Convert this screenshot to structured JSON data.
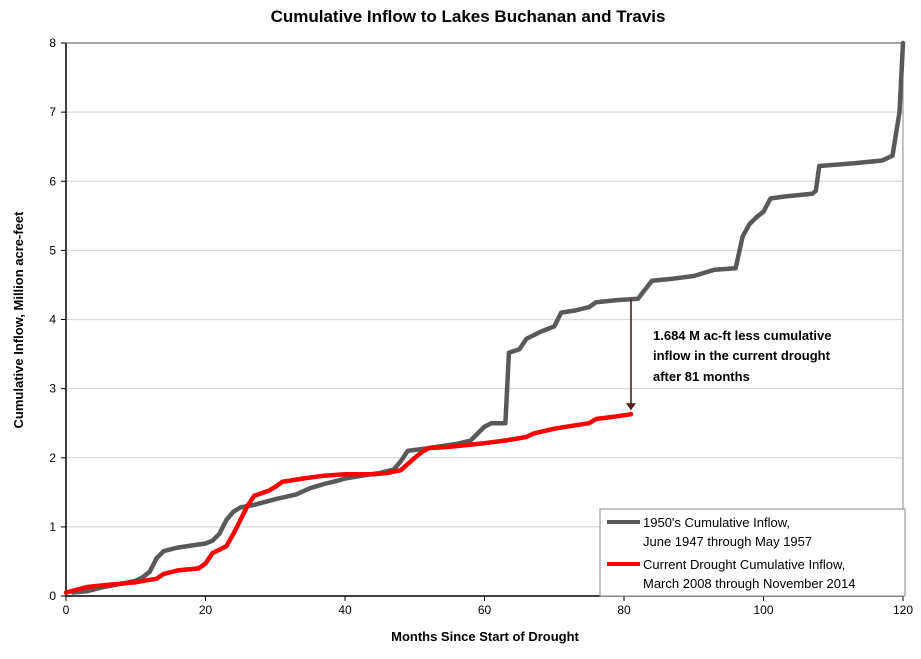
{
  "chart_data": {
    "type": "line",
    "title": "Cumulative Inflow to Lakes Buchanan and Travis",
    "xlabel": "Months Since Start of Drought",
    "ylabel": "Cumulative Inflow, Million acre-feet",
    "xlim": [
      0,
      120
    ],
    "ylim": [
      0,
      8
    ],
    "xticks": [
      "0",
      "20",
      "40",
      "60",
      "80",
      "100",
      "120"
    ],
    "yticks": [
      "0",
      "1",
      "2",
      "3",
      "4",
      "5",
      "6",
      "7",
      "8"
    ],
    "grid": "horizontal",
    "legend_position": "bottom-right",
    "series": [
      {
        "name": "1950's Cumulative Inflow,",
        "name_line2": "June 1947 through May 1957",
        "color": "#595959",
        "points": [
          [
            1,
            0.05
          ],
          [
            3,
            0.07
          ],
          [
            5,
            0.12
          ],
          [
            8,
            0.18
          ],
          [
            10,
            0.22
          ],
          [
            11,
            0.27
          ],
          [
            12,
            0.35
          ],
          [
            13,
            0.55
          ],
          [
            14,
            0.65
          ],
          [
            16,
            0.7
          ],
          [
            18,
            0.73
          ],
          [
            20,
            0.76
          ],
          [
            21,
            0.8
          ],
          [
            22,
            0.9
          ],
          [
            23,
            1.1
          ],
          [
            24,
            1.22
          ],
          [
            25,
            1.28
          ],
          [
            27,
            1.32
          ],
          [
            30,
            1.4
          ],
          [
            33,
            1.47
          ],
          [
            35,
            1.56
          ],
          [
            37,
            1.62
          ],
          [
            39,
            1.67
          ],
          [
            40,
            1.7
          ],
          [
            43,
            1.75
          ],
          [
            45,
            1.78
          ],
          [
            47,
            1.83
          ],
          [
            48,
            1.95
          ],
          [
            49,
            2.1
          ],
          [
            52,
            2.14
          ],
          [
            56,
            2.2
          ],
          [
            58,
            2.25
          ],
          [
            59,
            2.35
          ],
          [
            60,
            2.45
          ],
          [
            61,
            2.5
          ],
          [
            63,
            2.5
          ],
          [
            63.5,
            3.52
          ],
          [
            65,
            3.57
          ],
          [
            66,
            3.72
          ],
          [
            68,
            3.82
          ],
          [
            70,
            3.9
          ],
          [
            71,
            4.1
          ],
          [
            73,
            4.13
          ],
          [
            75,
            4.18
          ],
          [
            76,
            4.25
          ],
          [
            79,
            4.28
          ],
          [
            82,
            4.3
          ],
          [
            84,
            4.56
          ],
          [
            87,
            4.59
          ],
          [
            90,
            4.63
          ],
          [
            93,
            4.72
          ],
          [
            96,
            4.74
          ],
          [
            97,
            5.2
          ],
          [
            98,
            5.38
          ],
          [
            99,
            5.48
          ],
          [
            100,
            5.56
          ],
          [
            101,
            5.75
          ],
          [
            103,
            5.78
          ],
          [
            107,
            5.82
          ],
          [
            107.5,
            5.86
          ],
          [
            108,
            6.22
          ],
          [
            113,
            6.26
          ],
          [
            117,
            6.3
          ],
          [
            118.5,
            6.37
          ],
          [
            119.5,
            7.0
          ],
          [
            120,
            8.0
          ]
        ]
      },
      {
        "name": "Current Drought Cumulative Inflow,",
        "name_line2": "March 2008 through November 2014",
        "color": "#ff0000",
        "points": [
          [
            0,
            0.05
          ],
          [
            3,
            0.13
          ],
          [
            6,
            0.16
          ],
          [
            10,
            0.2
          ],
          [
            13,
            0.25
          ],
          [
            14,
            0.32
          ],
          [
            16,
            0.37
          ],
          [
            19,
            0.4
          ],
          [
            20,
            0.47
          ],
          [
            21,
            0.62
          ],
          [
            23,
            0.72
          ],
          [
            24,
            0.9
          ],
          [
            25,
            1.1
          ],
          [
            26,
            1.3
          ],
          [
            27,
            1.45
          ],
          [
            29,
            1.52
          ],
          [
            30,
            1.58
          ],
          [
            31,
            1.65
          ],
          [
            34,
            1.7
          ],
          [
            37,
            1.74
          ],
          [
            40,
            1.76
          ],
          [
            44,
            1.76
          ],
          [
            46,
            1.78
          ],
          [
            48,
            1.82
          ],
          [
            50,
            2.0
          ],
          [
            51,
            2.08
          ],
          [
            52,
            2.14
          ],
          [
            55,
            2.16
          ],
          [
            60,
            2.21
          ],
          [
            63,
            2.25
          ],
          [
            66,
            2.3
          ],
          [
            67,
            2.35
          ],
          [
            70,
            2.42
          ],
          [
            73,
            2.47
          ],
          [
            75,
            2.5
          ],
          [
            76,
            2.56
          ],
          [
            79,
            2.6
          ],
          [
            81,
            2.63
          ]
        ]
      }
    ],
    "annotation": {
      "lines": [
        "1.684 M ac-ft less cumulative",
        "inflow in the current drought",
        "after 81 months"
      ],
      "arrow_month": 81,
      "arrow_from": 4.29,
      "arrow_to": 2.63,
      "arrow_color": "#4d1f1f"
    }
  }
}
